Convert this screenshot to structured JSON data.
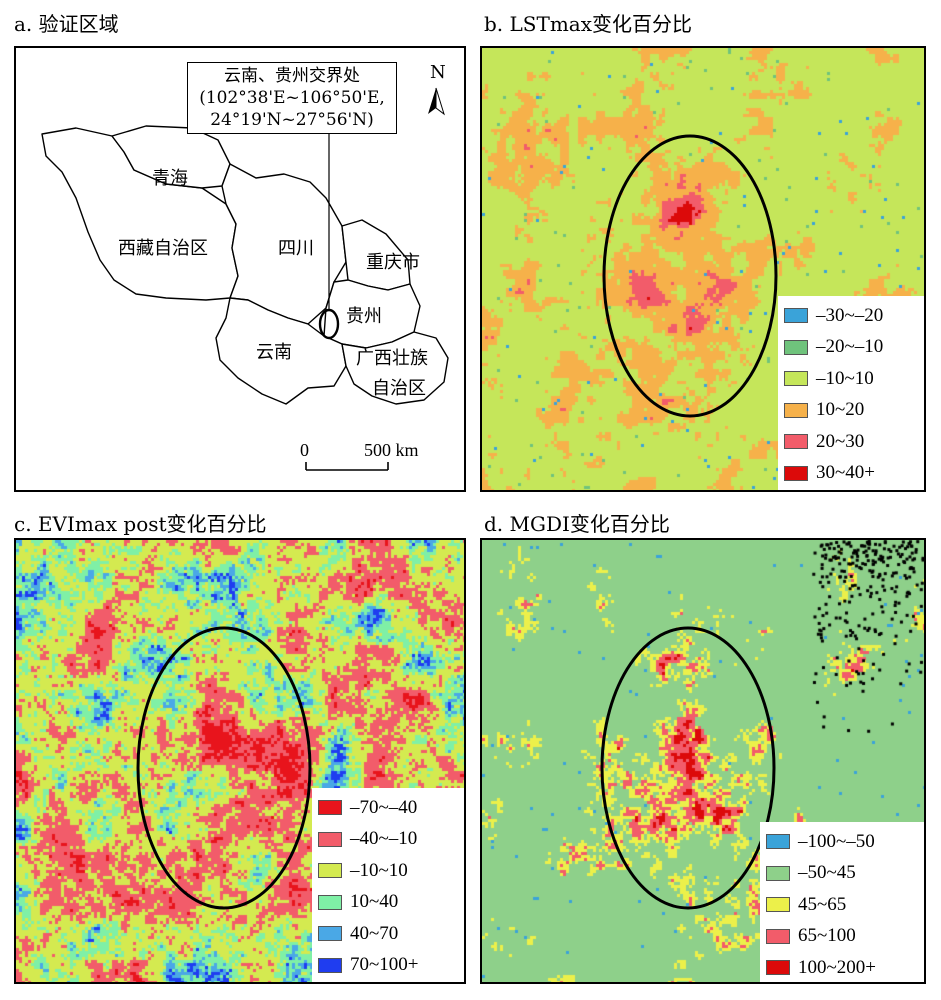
{
  "panels": {
    "a": {
      "title": "a. 验证区域",
      "callout": {
        "line1": "云南、贵州交界处",
        "line2": "(102°38'E~106°50'E,",
        "line3": "24°19'N~27°56'N)"
      },
      "north": "N",
      "regions": {
        "qinghai": "青海",
        "xizang": "西藏自治区",
        "sichuan": "四川",
        "chongqing": "重庆市",
        "guizhou": "贵州",
        "yunnan": "云南",
        "guangxi_1": "广西壮族",
        "guangxi_2": "自治区"
      },
      "scale": {
        "zero": "0",
        "dist": "500 km"
      }
    },
    "b": {
      "title": "b. LSTmax变化百分比",
      "legend": [
        {
          "label": "–30~–20",
          "color": "#3aa3d9"
        },
        {
          "label": "–20~–10",
          "color": "#6fc37c"
        },
        {
          "label": "–10~10",
          "color": "#c5e65a"
        },
        {
          "label": "10~20",
          "color": "#f6b14a"
        },
        {
          "label": "20~30",
          "color": "#f25c6a"
        },
        {
          "label": "30~40+",
          "color": "#dc0a0a"
        }
      ]
    },
    "c": {
      "title": "c. EVImax post变化百分比",
      "legend": [
        {
          "label": "–70~–40",
          "color": "#e8141c"
        },
        {
          "label": "–40~–10",
          "color": "#f25c6a"
        },
        {
          "label": "–10~10",
          "color": "#d4ea50"
        },
        {
          "label": "10~40",
          "color": "#7ff0a6"
        },
        {
          "label": "40~70",
          "color": "#4aa8e6"
        },
        {
          "label": "70~100+",
          "color": "#1f3df0"
        }
      ]
    },
    "d": {
      "title": "d. MGDI变化百分比",
      "legend": [
        {
          "label": "–100~–50",
          "color": "#3aa3d9"
        },
        {
          "label": "–50~45",
          "color": "#8ed08a"
        },
        {
          "label": "45~65",
          "color": "#ecf04a"
        },
        {
          "label": "65~100",
          "color": "#f25c6a"
        },
        {
          "label": "100~200+",
          "color": "#dc0a0a"
        }
      ]
    }
  }
}
